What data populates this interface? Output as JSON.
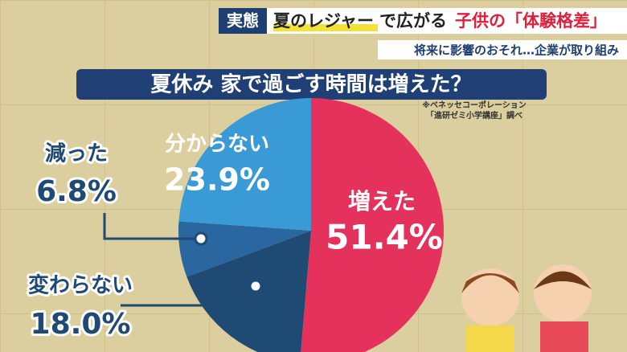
{
  "header": {
    "tag": "実態",
    "headline_highlight": "夏のレジャー",
    "headline_middle": "で広がる",
    "headline_emphasis": "子供の「体験格差」",
    "subheadline": "将来に影響のおそれ…企業が取り組み"
  },
  "chart_data": {
    "type": "pie",
    "title": "夏休み 家で過ごす時間は増えた？",
    "source": [
      "※ベネッセコーポレーション",
      "「進研ゼミ小学講座」調べ"
    ],
    "categories": [
      "増えた",
      "変わらない",
      "減った",
      "分からない"
    ],
    "values": [
      51.4,
      18.0,
      6.8,
      23.9
    ],
    "value_labels": [
      "51.4%",
      "18.0%",
      "6.8%",
      "23.9%"
    ],
    "colors": [
      "#e5325c",
      "#1f4a73",
      "#2a66a0",
      "#3a9ad6"
    ]
  }
}
